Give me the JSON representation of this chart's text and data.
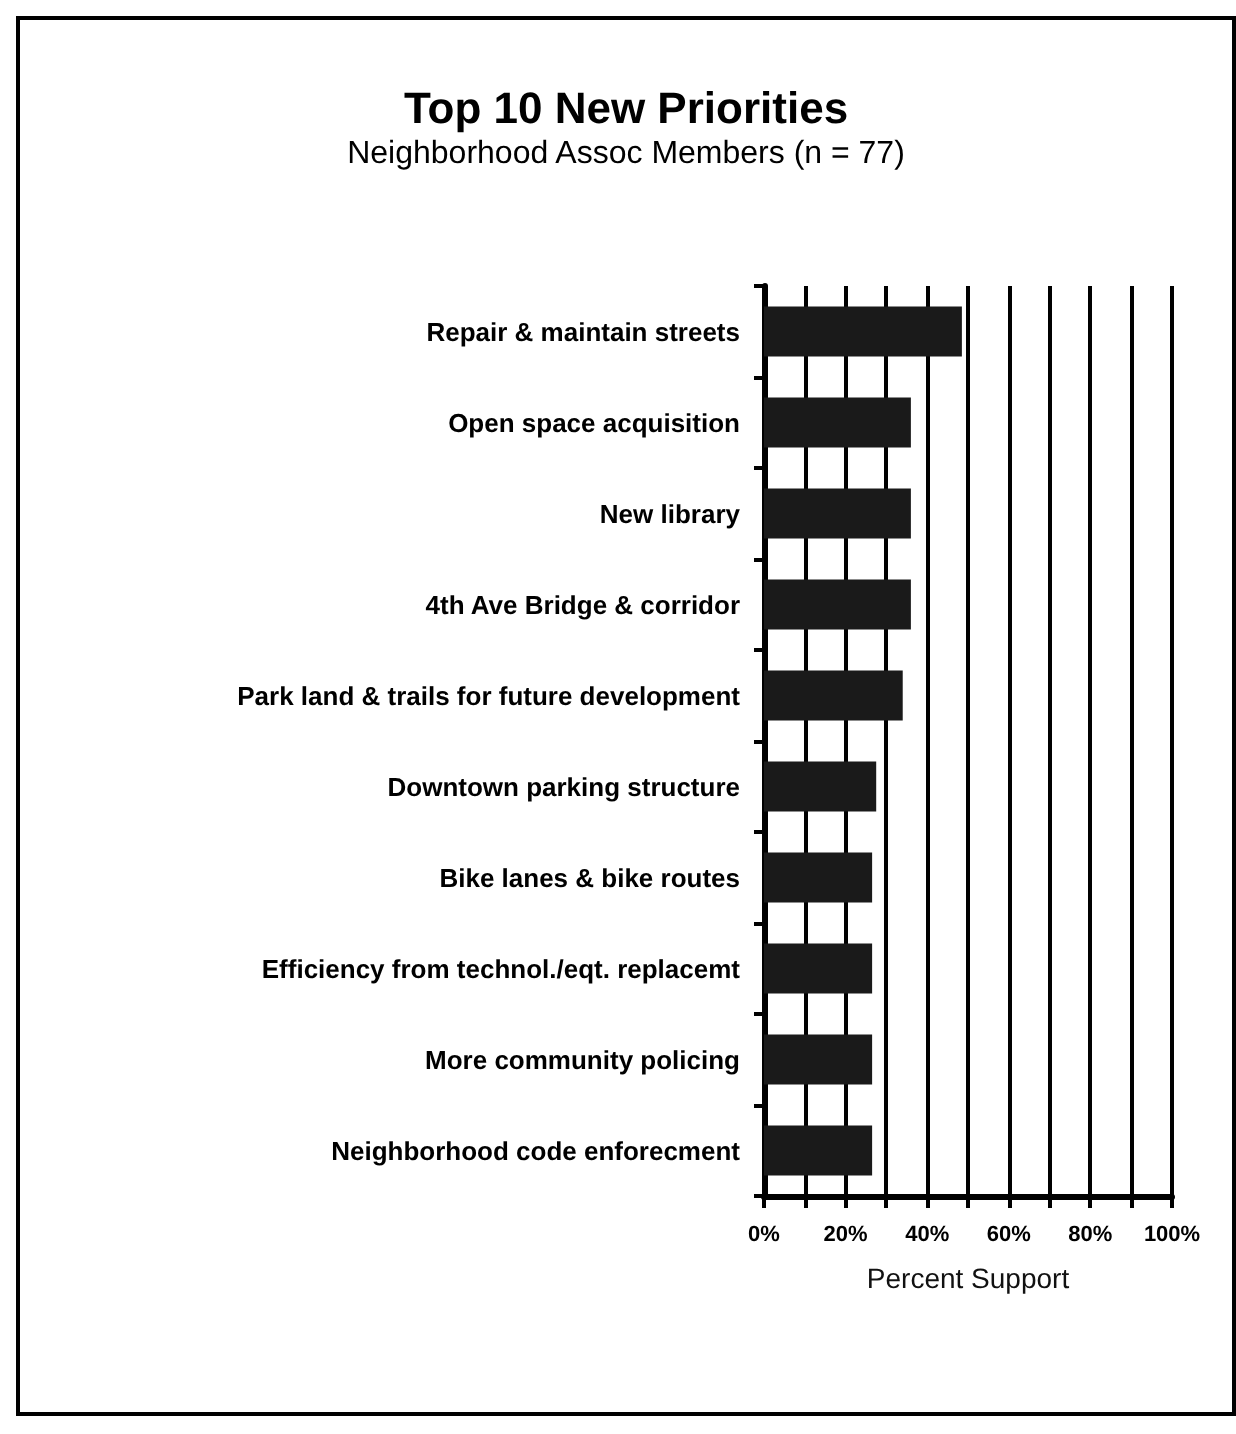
{
  "chart_data": {
    "type": "bar",
    "orientation": "horizontal",
    "title": "Top 10 New Priorities",
    "subtitle": "Neighborhood Assoc Members (n = 77)",
    "xlabel": "Percent Support",
    "categories": [
      "Repair & maintain streets",
      "Open space acquisition",
      "New library",
      "4th Ave Bridge & corridor",
      "Park land & trails for future development",
      "Downtown parking structure",
      "Bike lanes & bike routes",
      "Efficiency from technol./eqt. replacemt",
      "More community policing",
      "Neighborhood code enforecment"
    ],
    "values": [
      48.5,
      36,
      36,
      36,
      34,
      27.5,
      26.5,
      26.5,
      26.5,
      26.5
    ],
    "color": "#1a1a1a",
    "xlim": [
      0,
      100
    ],
    "xticks": [
      {
        "value": 0,
        "label": "0%"
      },
      {
        "value": 10,
        "label": null
      },
      {
        "value": 20,
        "label": "20%"
      },
      {
        "value": 30,
        "label": null
      },
      {
        "value": 40,
        "label": "40%"
      },
      {
        "value": 50,
        "label": null
      },
      {
        "value": 60,
        "label": "60%"
      },
      {
        "value": 70,
        "label": null
      },
      {
        "value": 80,
        "label": "80%"
      },
      {
        "value": 90,
        "label": null
      },
      {
        "value": 100,
        "label": "100%"
      }
    ],
    "grid": "x"
  }
}
